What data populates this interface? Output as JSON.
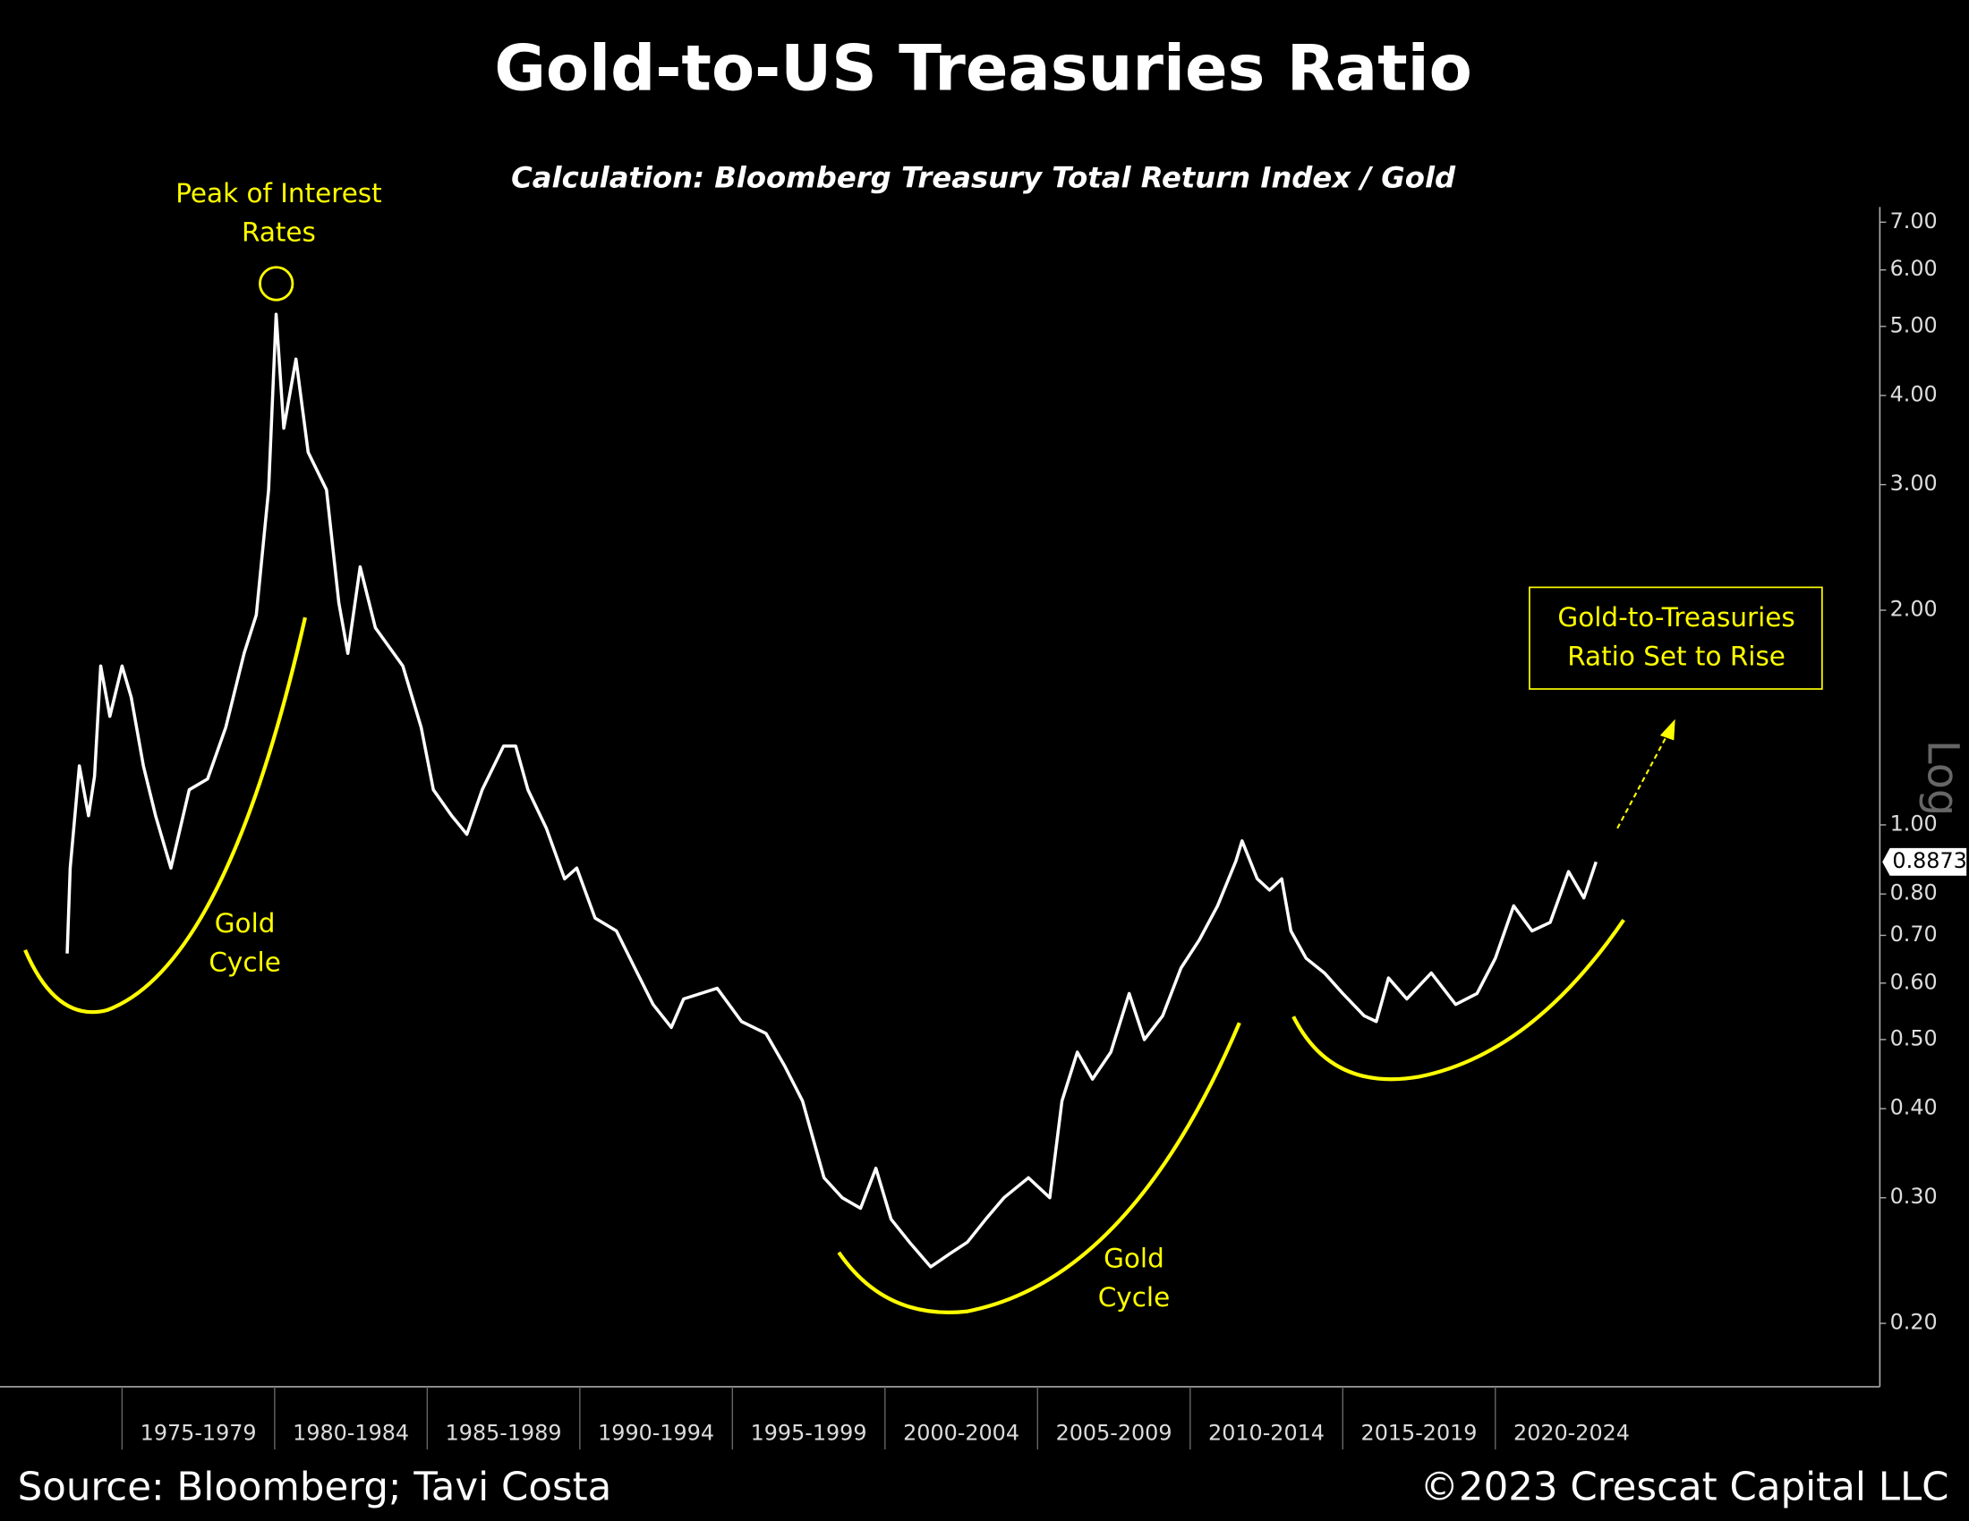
{
  "chart_data": {
    "type": "line",
    "title": "Gold-to-US Treasuries Ratio",
    "subtitle": "Calculation: Bloomberg Treasury Total Return Index / Gold",
    "source": "Source: Bloomberg; Tavi Costa",
    "copyright": "©2023 Crescat Capital LLC",
    "peak_label": [
      "Peak of Interest",
      "Rates"
    ],
    "cycle_labels": [
      [
        "Gold",
        "Cycle"
      ],
      [
        "Gold",
        "Cycle"
      ]
    ],
    "callout": [
      "Gold-to-Treasuries",
      "Ratio Set to Rise"
    ],
    "scale_label": "Log",
    "log_scale": true,
    "color": "#ffffff",
    "accent_color": "#ffff00",
    "x": [
      1973.2,
      1973.3,
      1973.6,
      1973.9,
      1974.1,
      1974.3,
      1974.6,
      1975.0,
      1975.3,
      1975.7,
      1976.1,
      1976.6,
      1977.2,
      1977.8,
      1978.4,
      1979.0,
      1979.4,
      1979.8,
      1980.05,
      1980.3,
      1980.7,
      1981.1,
      1981.7,
      1982.1,
      1982.4,
      1982.8,
      1983.3,
      1984.2,
      1984.8,
      1985.2,
      1985.8,
      1986.3,
      1986.8,
      1987.5,
      1987.9,
      1988.3,
      1988.9,
      1989.5,
      1989.9,
      1990.5,
      1991.2,
      1991.8,
      1992.4,
      1993.0,
      1993.4,
      1994.5,
      1995.3,
      1996.1,
      1996.7,
      1997.3,
      1998.0,
      1998.6,
      1999.2,
      1999.7,
      2000.2,
      2000.8,
      2001.5,
      2002.1,
      2002.7,
      2003.3,
      2003.9,
      2004.7,
      2005.4,
      2005.8,
      2006.3,
      2006.8,
      2007.4,
      2008.0,
      2008.5,
      2009.1,
      2009.7,
      2010.3,
      2010.9,
      2011.5,
      2011.7,
      2012.2,
      2012.6,
      2013.0,
      2013.3,
      2013.8,
      2014.4,
      2015.0,
      2015.7,
      2016.1,
      2016.5,
      2017.1,
      2017.9,
      2018.7,
      2019.4,
      2020.0,
      2020.6,
      2021.2,
      2021.8,
      2022.4,
      2022.9,
      2023.3
    ],
    "values": [
      0.66,
      0.87,
      1.21,
      1.03,
      1.17,
      1.67,
      1.42,
      1.67,
      1.51,
      1.21,
      1.03,
      0.87,
      1.12,
      1.16,
      1.37,
      1.74,
      1.97,
      2.95,
      5.2,
      3.6,
      4.5,
      3.33,
      2.95,
      2.05,
      1.74,
      2.3,
      1.89,
      1.67,
      1.37,
      1.12,
      1.03,
      0.97,
      1.12,
      1.29,
      1.29,
      1.12,
      0.99,
      0.84,
      0.87,
      0.74,
      0.71,
      0.63,
      0.56,
      0.52,
      0.57,
      0.59,
      0.53,
      0.51,
      0.46,
      0.41,
      0.32,
      0.3,
      0.29,
      0.33,
      0.28,
      0.26,
      0.24,
      0.25,
      0.26,
      0.28,
      0.3,
      0.32,
      0.3,
      0.41,
      0.48,
      0.44,
      0.48,
      0.58,
      0.5,
      0.54,
      0.63,
      0.69,
      0.77,
      0.89,
      0.95,
      0.84,
      0.81,
      0.84,
      0.71,
      0.65,
      0.62,
      0.58,
      0.54,
      0.53,
      0.61,
      0.57,
      0.62,
      0.56,
      0.58,
      0.65,
      0.77,
      0.71,
      0.73,
      0.86,
      0.79,
      0.8873
    ],
    "last_value": 0.8873,
    "xlim": [
      1971,
      2032.6
    ],
    "xticks": [
      {
        "value": 1975,
        "label": "1975-1979"
      },
      {
        "value": 1980,
        "label": "1980-1984"
      },
      {
        "value": 1985,
        "label": "1985-1989"
      },
      {
        "value": 1990,
        "label": "1990-1994"
      },
      {
        "value": 1995,
        "label": "1995-1999"
      },
      {
        "value": 2000,
        "label": "2000-2004"
      },
      {
        "value": 2005,
        "label": "2005-2009"
      },
      {
        "value": 2010,
        "label": "2010-2014"
      },
      {
        "value": 2015,
        "label": "2015-2019"
      },
      {
        "value": 2020,
        "label": "2020-2024"
      }
    ],
    "ylim": [
      0.163,
      7.35
    ],
    "yticks": [
      {
        "value": 0.2,
        "label": "0.20"
      },
      {
        "value": 0.3,
        "label": "0.30"
      },
      {
        "value": 0.4,
        "label": "0.40"
      },
      {
        "value": 0.5,
        "label": "0.50"
      },
      {
        "value": 0.6,
        "label": "0.60"
      },
      {
        "value": 0.7,
        "label": "0.70"
      },
      {
        "value": 0.8,
        "label": "0.80"
      },
      {
        "value": 1,
        "label": "1.00"
      },
      {
        "value": 2,
        "label": "2.00"
      },
      {
        "value": 3,
        "label": "3.00"
      },
      {
        "value": 4,
        "label": "4.00"
      },
      {
        "value": 5,
        "label": "5.00"
      },
      {
        "value": 6,
        "label": "6.00"
      },
      {
        "value": 7,
        "label": "7.00"
      }
    ]
  }
}
